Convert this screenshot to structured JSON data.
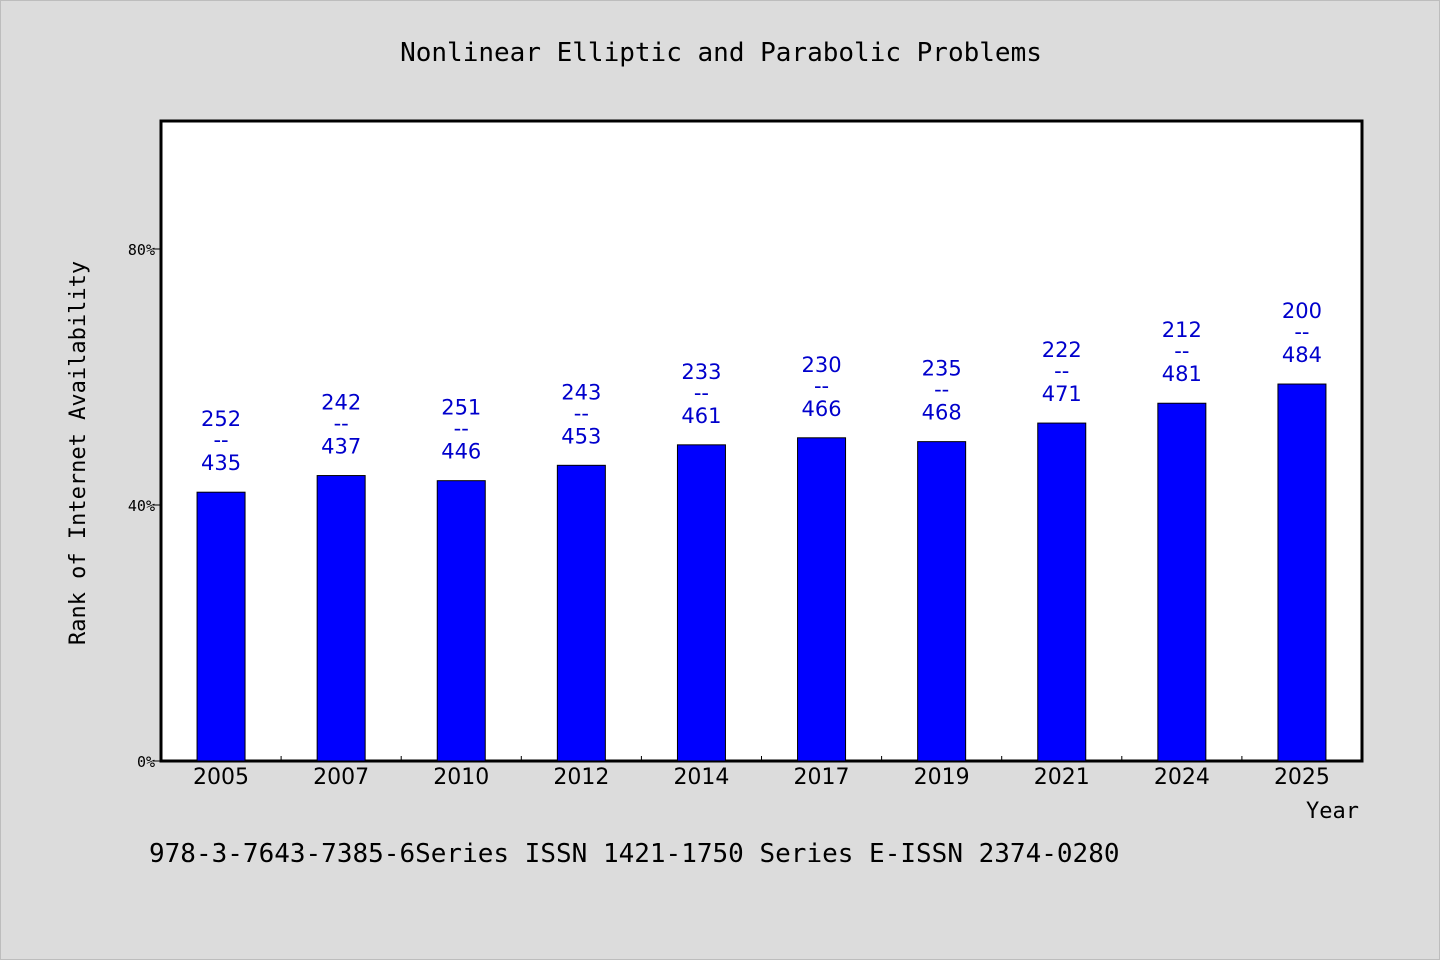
{
  "chart_data": {
    "type": "bar",
    "title": "Nonlinear Elliptic and Parabolic Problems",
    "xlabel": "Year",
    "ylabel": "Rank of Internet Availability",
    "categories": [
      "2005",
      "2007",
      "2010",
      "2012",
      "2014",
      "2017",
      "2019",
      "2021",
      "2024",
      "2025"
    ],
    "values": [
      42.0,
      44.6,
      43.8,
      46.2,
      49.4,
      50.5,
      49.9,
      52.8,
      55.9,
      58.9
    ],
    "unit": "%",
    "data_labels": [
      {
        "top": "252",
        "sep": "--",
        "bottom": "435"
      },
      {
        "top": "242",
        "sep": "--",
        "bottom": "437"
      },
      {
        "top": "251",
        "sep": "--",
        "bottom": "446"
      },
      {
        "top": "243",
        "sep": "--",
        "bottom": "453"
      },
      {
        "top": "233",
        "sep": "--",
        "bottom": "461"
      },
      {
        "top": "230",
        "sep": "--",
        "bottom": "466"
      },
      {
        "top": "235",
        "sep": "--",
        "bottom": "468"
      },
      {
        "top": "222",
        "sep": "--",
        "bottom": "471"
      },
      {
        "top": "212",
        "sep": "--",
        "bottom": "481"
      },
      {
        "top": "200",
        "sep": "--",
        "bottom": "484"
      }
    ],
    "ylim": [
      0,
      100
    ],
    "yticks": [
      0,
      40,
      80
    ],
    "ytick_labels": [
      "0%",
      "40%",
      "80%"
    ],
    "grid": false,
    "legend": "none",
    "bar_color": "#0000ff",
    "label_color": "#0000cc"
  },
  "footer": {
    "text": "978-3-7643-7385-6Series ISSN 1421-1750 Series E-ISSN 2374-0280"
  }
}
